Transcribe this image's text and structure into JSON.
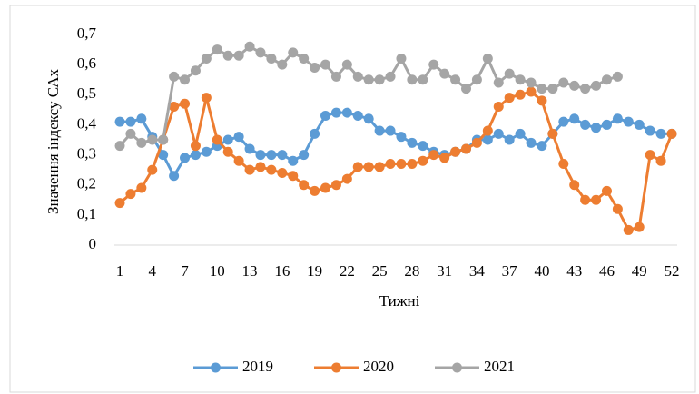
{
  "chart_data": {
    "type": "line",
    "x_label": "Тижні",
    "y_label": "Значення індексу САх",
    "categories": [
      1,
      null,
      null,
      4,
      null,
      null,
      7,
      null,
      null,
      10,
      null,
      null,
      13,
      null,
      null,
      16,
      null,
      null,
      19,
      null,
      null,
      22,
      null,
      null,
      25,
      null,
      null,
      28,
      null,
      null,
      31,
      null,
      null,
      34,
      null,
      null,
      37,
      null,
      null,
      40,
      null,
      null,
      43,
      null,
      null,
      46,
      null,
      null,
      49,
      null,
      null,
      52
    ],
    "ylim": [
      0,
      0.7
    ],
    "yticks": [
      0,
      {
        "value": 0.1,
        "label": "0,1"
      },
      {
        "value": 0.2,
        "label": "0,2"
      },
      {
        "value": 0.3,
        "label": "0,3"
      },
      {
        "value": 0.4,
        "label": "0,4"
      },
      {
        "value": 0.5,
        "label": "0,5"
      },
      {
        "value": 0.6,
        "label": "0,6"
      },
      {
        "value": 0.7,
        "label": "0,7"
      }
    ],
    "grid": false,
    "legend": "bottom",
    "series": [
      {
        "name": "2019",
        "color": "#5b9bd5",
        "values": [
          0.41,
          0.41,
          0.42,
          0.36,
          0.3,
          0.23,
          0.29,
          0.3,
          0.31,
          0.33,
          0.35,
          0.36,
          0.32,
          0.3,
          0.3,
          0.3,
          0.28,
          0.3,
          0.37,
          0.43,
          0.44,
          0.44,
          0.43,
          0.42,
          0.38,
          0.38,
          0.36,
          0.34,
          0.33,
          0.31,
          0.3,
          0.31,
          0.32,
          0.35,
          0.35,
          0.37,
          0.35,
          0.37,
          0.34,
          0.33,
          0.37,
          0.41,
          0.42,
          0.4,
          0.39,
          0.4,
          0.42,
          0.41,
          0.4,
          0.38,
          0.37,
          0.37
        ]
      },
      {
        "name": "2020",
        "color": "#ed7d31",
        "values": [
          0.14,
          0.17,
          0.19,
          0.25,
          0.35,
          0.46,
          0.47,
          0.33,
          0.49,
          0.35,
          0.31,
          0.28,
          0.25,
          0.26,
          0.25,
          0.24,
          0.23,
          0.2,
          0.18,
          0.19,
          0.2,
          0.22,
          0.26,
          0.26,
          0.26,
          0.27,
          0.27,
          0.27,
          0.28,
          0.3,
          0.29,
          0.31,
          0.32,
          0.34,
          0.38,
          0.46,
          0.49,
          0.5,
          0.51,
          0.48,
          0.37,
          0.27,
          0.2,
          0.15,
          0.15,
          0.18,
          0.12,
          0.05,
          0.06,
          0.3,
          0.28,
          0.37
        ]
      },
      {
        "name": "2021",
        "color": "#a5a5a5",
        "values": [
          0.33,
          0.37,
          0.34,
          0.35,
          0.35,
          0.56,
          0.55,
          0.58,
          0.62,
          0.65,
          0.63,
          0.63,
          0.66,
          0.64,
          0.62,
          0.6,
          0.64,
          0.62,
          0.59,
          0.6,
          0.56,
          0.6,
          0.56,
          0.55,
          0.55,
          0.56,
          0.62,
          0.55,
          0.55,
          0.6,
          0.57,
          0.55,
          0.52,
          0.55,
          0.62,
          0.54,
          0.57,
          0.55,
          0.54,
          0.52,
          0.52,
          0.54,
          0.53,
          0.52,
          0.53,
          0.55,
          0.56,
          null,
          null,
          null,
          null,
          null
        ]
      }
    ]
  }
}
